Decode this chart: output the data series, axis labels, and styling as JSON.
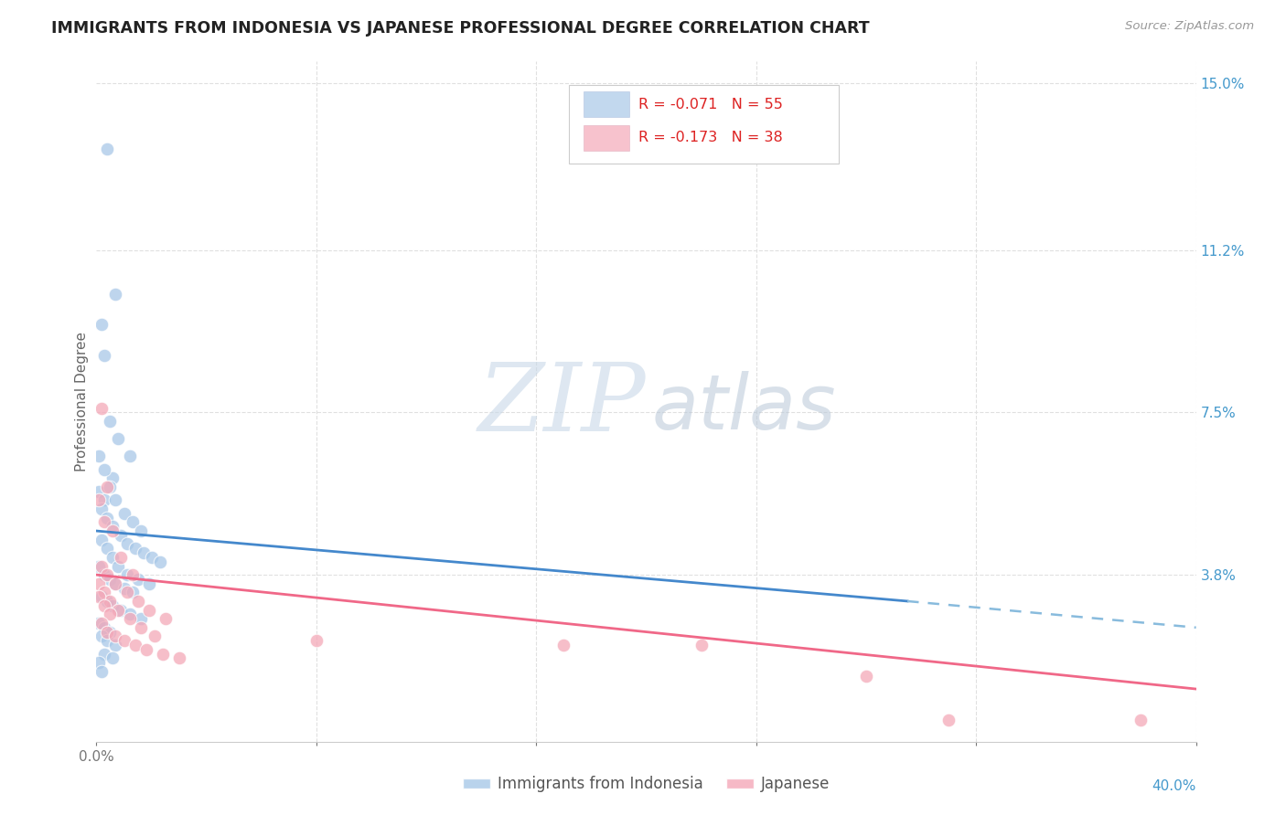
{
  "title": "IMMIGRANTS FROM INDONESIA VS JAPANESE PROFESSIONAL DEGREE CORRELATION CHART",
  "source": "Source: ZipAtlas.com",
  "ylabel": "Professional Degree",
  "yticks": [
    0.0,
    0.038,
    0.075,
    0.112,
    0.15
  ],
  "ytick_labels": [
    "",
    "3.8%",
    "7.5%",
    "11.2%",
    "15.0%"
  ],
  "xticks": [
    0.0,
    0.08,
    0.16,
    0.24,
    0.32,
    0.4
  ],
  "xlim": [
    0.0,
    0.4
  ],
  "ylim": [
    0.0,
    0.155
  ],
  "watermark_zip": "ZIP",
  "watermark_atlas": "atlas",
  "legend_label1": "R = -0.071   N = 55",
  "legend_label2": "R = -0.173   N = 38",
  "series1_color": "#a8c8e8",
  "series2_color": "#f4a8b8",
  "trendline1_color": "#4488cc",
  "trendline2_color": "#f06888",
  "trendline_dash_color": "#88bbdd",
  "trendline1_x0": 0.0,
  "trendline1_y0": 0.048,
  "trendline1_x1": 0.295,
  "trendline1_y1": 0.032,
  "trendline1_dash_x0": 0.295,
  "trendline1_dash_y0": 0.032,
  "trendline1_dash_x1": 0.4,
  "trendline1_dash_y1": 0.026,
  "trendline2_x0": 0.0,
  "trendline2_y0": 0.038,
  "trendline2_x1": 0.4,
  "trendline2_y1": 0.012,
  "indonesia_x": [
    0.004,
    0.002,
    0.007,
    0.003,
    0.005,
    0.008,
    0.012,
    0.006,
    0.001,
    0.003,
    0.002,
    0.004,
    0.006,
    0.009,
    0.011,
    0.014,
    0.017,
    0.02,
    0.023,
    0.001,
    0.003,
    0.005,
    0.007,
    0.01,
    0.013,
    0.016,
    0.002,
    0.004,
    0.006,
    0.008,
    0.011,
    0.015,
    0.019,
    0.001,
    0.003,
    0.005,
    0.007,
    0.01,
    0.013,
    0.002,
    0.004,
    0.006,
    0.009,
    0.012,
    0.016,
    0.001,
    0.003,
    0.005,
    0.002,
    0.004,
    0.007,
    0.003,
    0.006,
    0.001,
    0.002
  ],
  "indonesia_y": [
    0.135,
    0.095,
    0.102,
    0.088,
    0.073,
    0.069,
    0.065,
    0.06,
    0.057,
    0.055,
    0.053,
    0.051,
    0.049,
    0.047,
    0.045,
    0.044,
    0.043,
    0.042,
    0.041,
    0.065,
    0.062,
    0.058,
    0.055,
    0.052,
    0.05,
    0.048,
    0.046,
    0.044,
    0.042,
    0.04,
    0.038,
    0.037,
    0.036,
    0.04,
    0.038,
    0.037,
    0.036,
    0.035,
    0.034,
    0.033,
    0.032,
    0.031,
    0.03,
    0.029,
    0.028,
    0.027,
    0.026,
    0.025,
    0.024,
    0.023,
    0.022,
    0.02,
    0.019,
    0.018,
    0.016
  ],
  "japanese_x": [
    0.002,
    0.004,
    0.001,
    0.003,
    0.006,
    0.009,
    0.013,
    0.001,
    0.003,
    0.005,
    0.008,
    0.012,
    0.016,
    0.021,
    0.002,
    0.004,
    0.007,
    0.011,
    0.015,
    0.019,
    0.025,
    0.001,
    0.003,
    0.005,
    0.002,
    0.004,
    0.007,
    0.01,
    0.014,
    0.018,
    0.024,
    0.03,
    0.28,
    0.31,
    0.38,
    0.17,
    0.22,
    0.08
  ],
  "japanese_y": [
    0.076,
    0.058,
    0.055,
    0.05,
    0.048,
    0.042,
    0.038,
    0.036,
    0.034,
    0.032,
    0.03,
    0.028,
    0.026,
    0.024,
    0.04,
    0.038,
    0.036,
    0.034,
    0.032,
    0.03,
    0.028,
    0.033,
    0.031,
    0.029,
    0.027,
    0.025,
    0.024,
    0.023,
    0.022,
    0.021,
    0.02,
    0.019,
    0.015,
    0.005,
    0.005,
    0.022,
    0.022,
    0.023
  ],
  "background_color": "#ffffff",
  "grid_color": "#e0e0e0",
  "title_color": "#222222",
  "axis_label_color": "#666666",
  "right_ytick_color": "#4499cc",
  "bottom_label_color": "#555555"
}
